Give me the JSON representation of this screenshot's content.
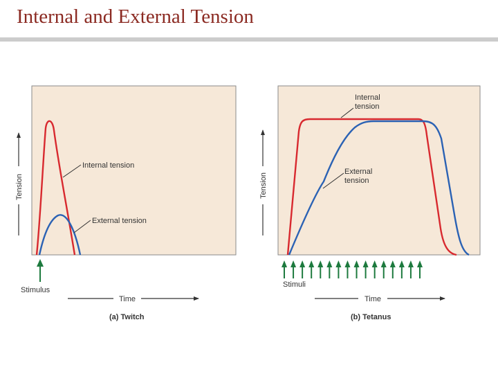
{
  "slide": {
    "title": "Internal and External Tension"
  },
  "colors": {
    "title": "#8b2a22",
    "panel": "#f6e8d8",
    "internal": "#d8292f",
    "external": "#2b62b4",
    "stimulus": "#1d7a3e",
    "rule": "#cccccc"
  },
  "twitch": {
    "y_axis": "Tension",
    "x_axis": "Time",
    "caption": "(a) Twitch",
    "internal_label": "Internal tension",
    "external_label": "External tension",
    "stimulus_label": "Stimulus",
    "stimulus_count": 1
  },
  "tetanus": {
    "y_axis": "Tension",
    "x_axis": "Time",
    "caption": "(b) Tetanus",
    "internal_label_line1": "Internal",
    "internal_label_line2": "tension",
    "external_label_line1": "External",
    "external_label_line2": "tension",
    "stimulus_label": "Stimuli",
    "stimulus_count": 16
  }
}
